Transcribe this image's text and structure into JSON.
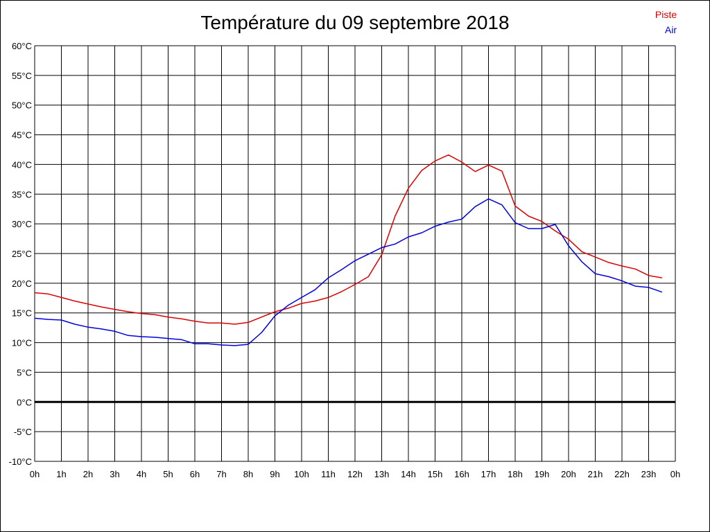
{
  "chart_data": {
    "type": "line",
    "title": "Température du 09 septembre 2018",
    "xlabel": "",
    "ylabel": "",
    "x_tick_labels": [
      "0h",
      "1h",
      "2h",
      "3h",
      "4h",
      "5h",
      "6h",
      "7h",
      "8h",
      "9h",
      "10h",
      "11h",
      "12h",
      "13h",
      "14h",
      "15h",
      "16h",
      "17h",
      "18h",
      "19h",
      "20h",
      "21h",
      "22h",
      "23h",
      "0h"
    ],
    "y_tick_labels": [
      "60°C",
      "55°C",
      "50°C",
      "45°C",
      "40°C",
      "35°C",
      "30°C",
      "25°C",
      "20°C",
      "15°C",
      "10°C",
      "5°C",
      "0°C",
      "-5°C",
      "-10°C"
    ],
    "y_ticks": [
      60,
      55,
      50,
      45,
      40,
      35,
      30,
      25,
      20,
      15,
      10,
      5,
      0,
      -5,
      -10
    ],
    "xlim": [
      0,
      24
    ],
    "ylim": [
      -10,
      60
    ],
    "grid": true,
    "legend_position": "top-right",
    "x": [
      0.0,
      0.5,
      1.0,
      1.5,
      2.0,
      2.5,
      3.0,
      3.5,
      4.0,
      4.5,
      5.0,
      5.5,
      6.0,
      6.5,
      7.0,
      7.5,
      8.0,
      8.5,
      9.0,
      9.5,
      10.0,
      10.5,
      11.0,
      11.5,
      12.0,
      12.5,
      13.0,
      13.5,
      14.0,
      14.5,
      15.0,
      15.5,
      16.0,
      16.5,
      17.0,
      17.5,
      18.0,
      18.5,
      19.0,
      19.5,
      20.0,
      20.5,
      21.0,
      21.5,
      22.0,
      22.5,
      23.0,
      23.5
    ],
    "series": [
      {
        "name": "Piste",
        "color": "#dd0000",
        "values": [
          18.4,
          18.2,
          17.6,
          17.0,
          16.5,
          16.0,
          15.6,
          15.2,
          14.9,
          14.7,
          14.3,
          14.0,
          13.6,
          13.3,
          13.3,
          13.1,
          13.4,
          14.3,
          15.2,
          15.8,
          16.6,
          17.0,
          17.6,
          18.6,
          19.8,
          21.1,
          24.8,
          31.3,
          36.0,
          39.0,
          40.6,
          41.6,
          40.4,
          38.8,
          39.9,
          38.9,
          33.0,
          31.3,
          30.4,
          28.8,
          27.4,
          25.3,
          24.4,
          23.5,
          22.9,
          22.4,
          21.3,
          20.9
        ]
      },
      {
        "name": "Air",
        "color": "#0000dd",
        "values": [
          14.1,
          13.9,
          13.8,
          13.1,
          12.6,
          12.3,
          11.9,
          11.2,
          11.0,
          10.9,
          10.7,
          10.5,
          9.8,
          9.8,
          9.6,
          9.5,
          9.7,
          11.7,
          14.5,
          16.3,
          17.6,
          18.9,
          20.9,
          22.3,
          23.8,
          24.9,
          26.0,
          26.6,
          27.8,
          28.5,
          29.6,
          30.3,
          30.8,
          32.9,
          34.2,
          33.2,
          30.2,
          29.2,
          29.2,
          29.9,
          26.3,
          23.6,
          21.6,
          21.1,
          20.4,
          19.5,
          19.3,
          18.5
        ]
      }
    ],
    "reference_line": 0
  }
}
